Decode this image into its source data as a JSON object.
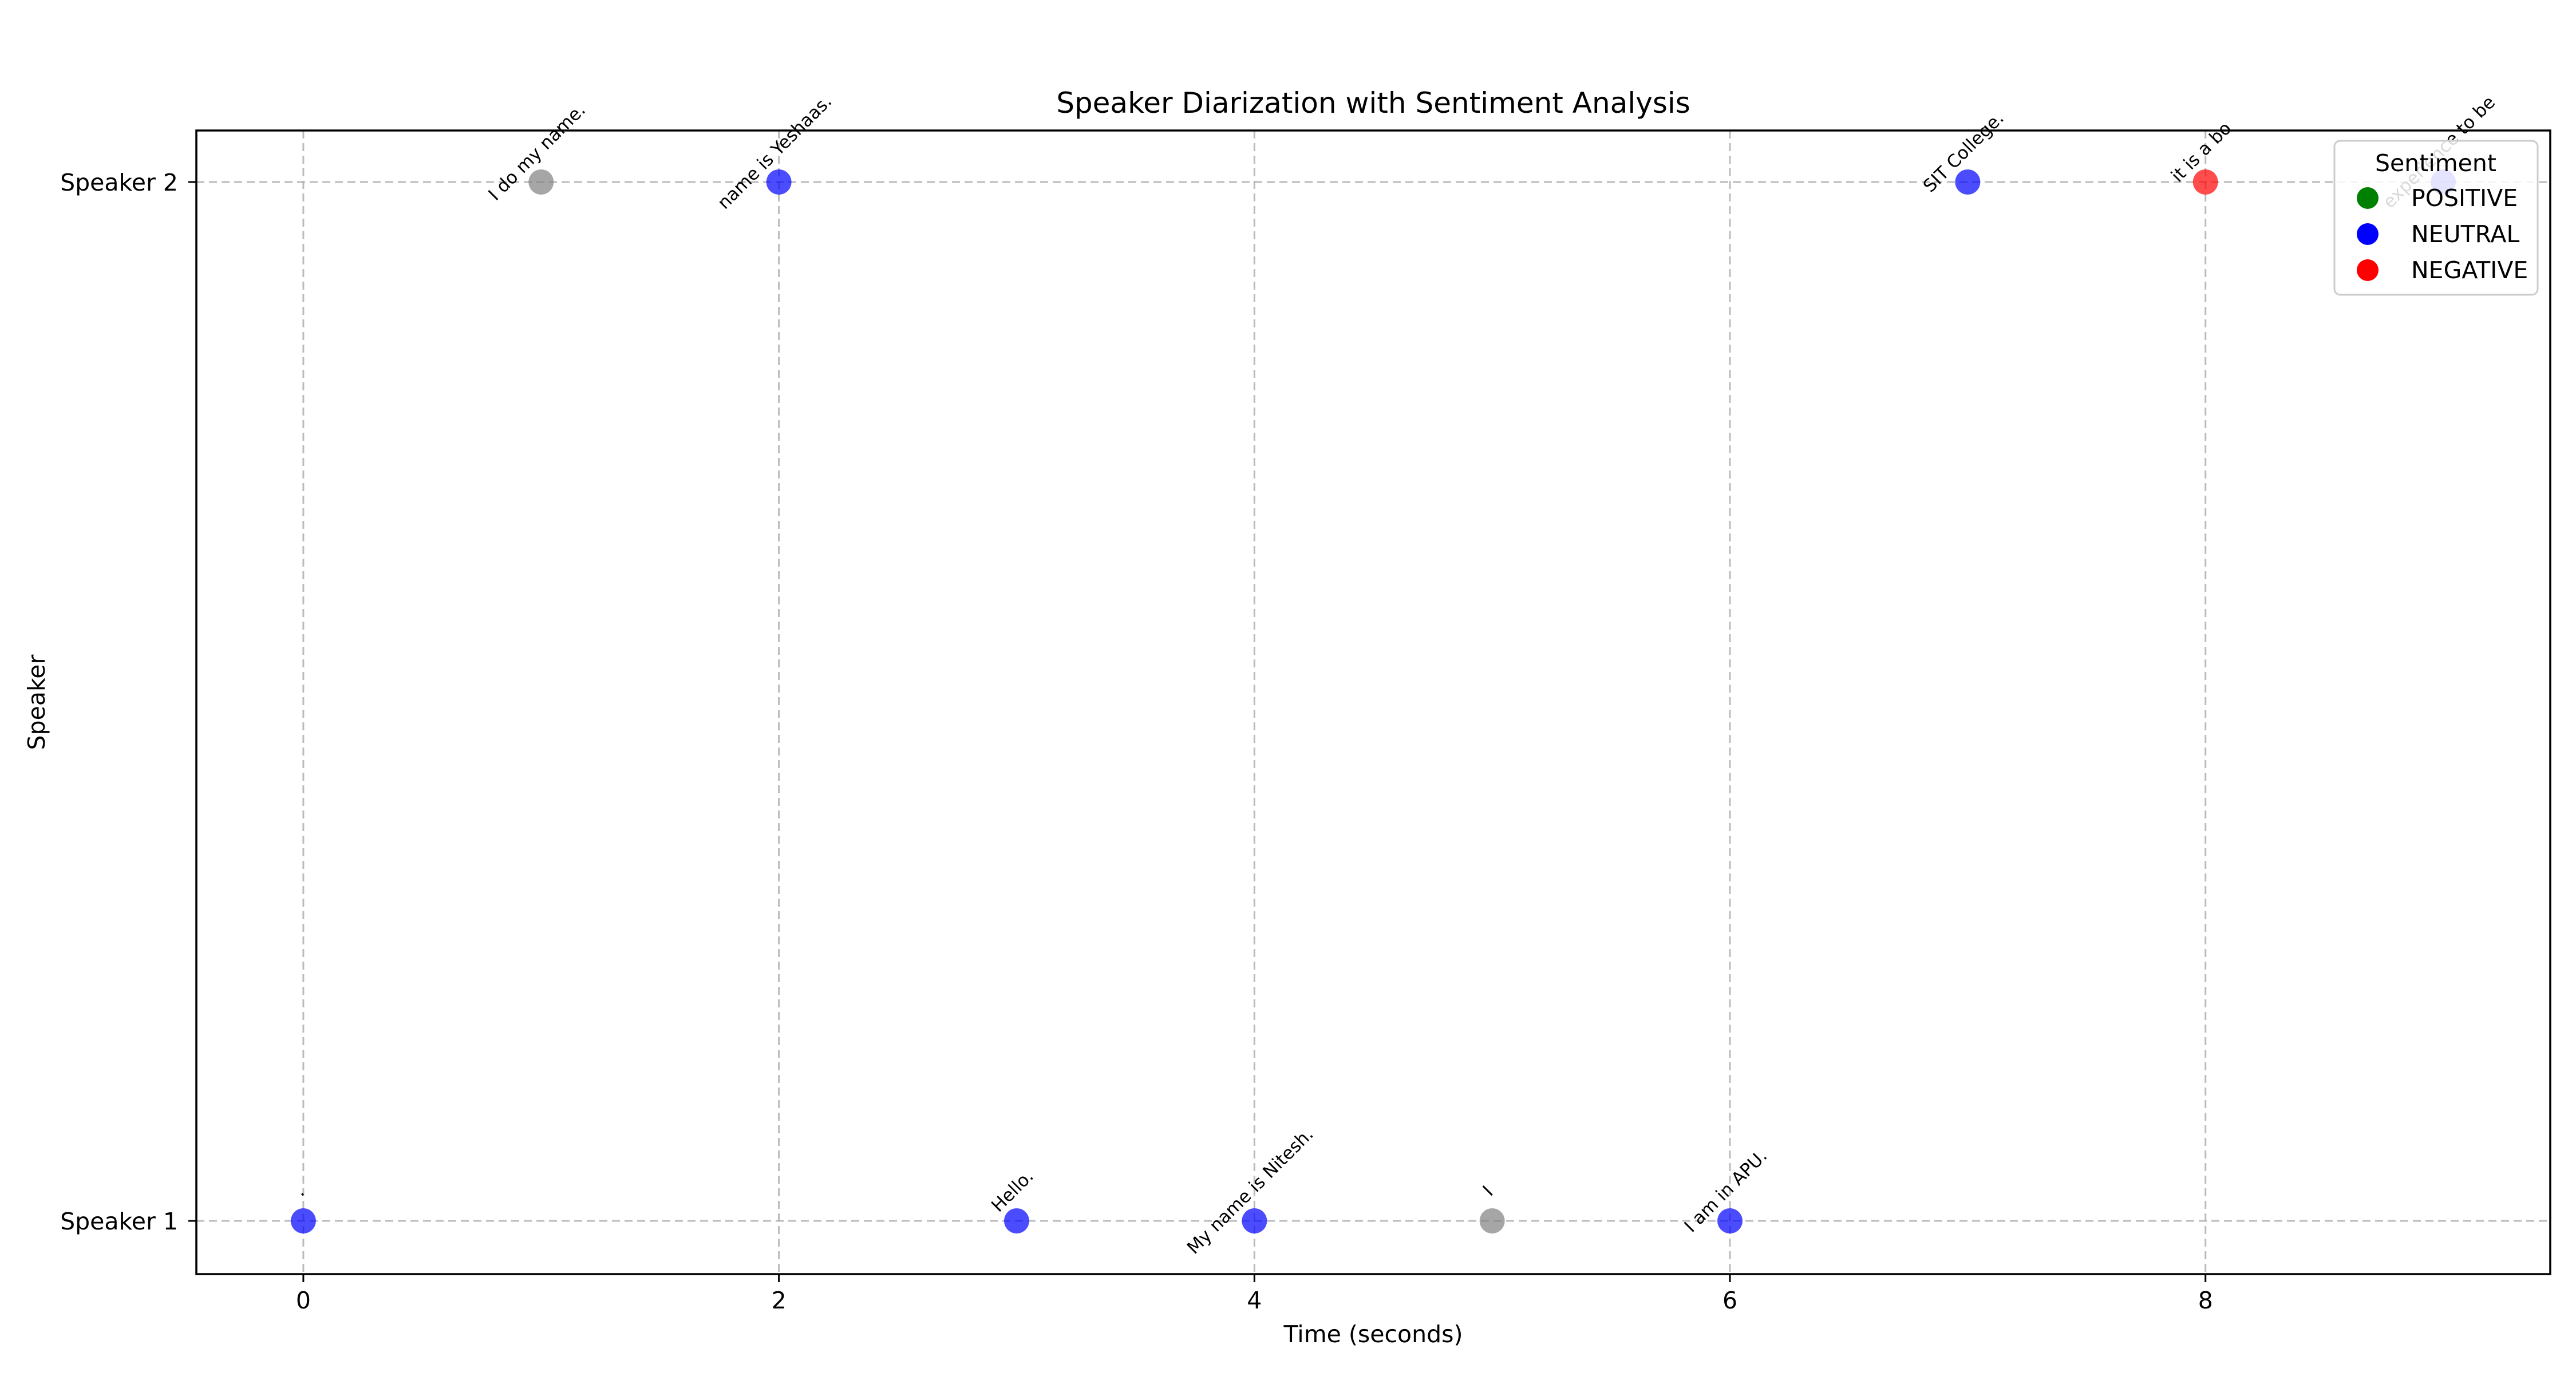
{
  "chart_data": {
    "type": "scatter",
    "title": "Speaker Diarization with Sentiment Analysis",
    "xlabel": "Time (seconds)",
    "ylabel": "Speaker",
    "xlim": [
      -0.45,
      9.45
    ],
    "x_ticks": [
      0,
      2,
      4,
      6,
      8
    ],
    "y_categories": [
      "Speaker 1",
      "Speaker 2"
    ],
    "grid": true,
    "legend": {
      "title": "Sentiment",
      "position": "top-right",
      "entries": [
        {
          "label": "POSITIVE",
          "color": "#008000"
        },
        {
          "label": "NEUTRAL",
          "color": "#0000ff"
        },
        {
          "label": "NEGATIVE",
          "color": "#ff0000"
        }
      ]
    },
    "points": [
      {
        "x": 0,
        "speaker": "Speaker 1",
        "text": ".",
        "color": "#0000ff"
      },
      {
        "x": 1,
        "speaker": "Speaker 2",
        "text": "I do my name.",
        "color": "#808080"
      },
      {
        "x": 2,
        "speaker": "Speaker 2",
        "text": "name is Yeshaas.",
        "color": "#0000ff"
      },
      {
        "x": 3,
        "speaker": "Speaker 1",
        "text": "Hello.",
        "color": "#0000ff"
      },
      {
        "x": 4,
        "speaker": "Speaker 1",
        "text": "My name is Nitesh.",
        "color": "#0000ff"
      },
      {
        "x": 5,
        "speaker": "Speaker 1",
        "text": "I",
        "color": "#808080"
      },
      {
        "x": 6,
        "speaker": "Speaker 1",
        "text": "I am in APU.",
        "color": "#0000ff"
      },
      {
        "x": 7,
        "speaker": "Speaker 2",
        "text": "SIT College.",
        "color": "#0000ff"
      },
      {
        "x": 8,
        "speaker": "Speaker 2",
        "text": "it is a bo",
        "color": "#ff0000"
      },
      {
        "x": 9,
        "speaker": "Speaker 2",
        "text": "experience to be",
        "color": "#0000ff"
      }
    ]
  }
}
